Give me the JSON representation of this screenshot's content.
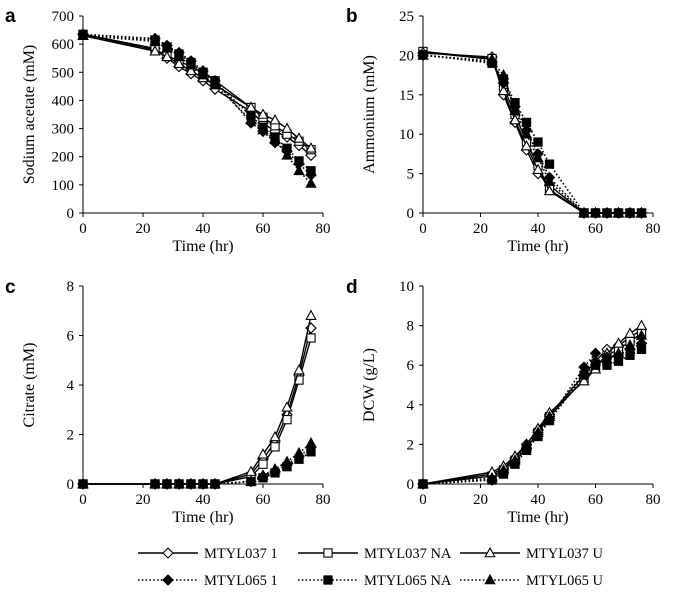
{
  "legend": [
    {
      "name": "MTYL037 1",
      "marker": "diamond",
      "fill": "open",
      "dash": "solid"
    },
    {
      "name": "MTYL037 NA",
      "marker": "square",
      "fill": "open",
      "dash": "solid"
    },
    {
      "name": "MTYL037 U",
      "marker": "triangle",
      "fill": "open",
      "dash": "solid"
    },
    {
      "name": "MTYL065 1",
      "marker": "diamond",
      "fill": "filled",
      "dash": "dotted"
    },
    {
      "name": "MTYL065 NA",
      "marker": "square",
      "fill": "filled",
      "dash": "dotted"
    },
    {
      "name": "MTYL065 U",
      "marker": "triangle",
      "fill": "filled",
      "dash": "dotted"
    }
  ],
  "colors": {
    "line": "#000000",
    "open_fill": "#ffffff",
    "filled_fill": "#000000",
    "axis": "#000000"
  },
  "chart_data": [
    {
      "panel": "a",
      "type": "line",
      "xlabel": "Time (hr)",
      "ylabel": "Sodium acetate (mM)",
      "xlim": [
        0,
        80
      ],
      "ylim": [
        0,
        700
      ],
      "xticks": [
        0,
        20,
        40,
        60,
        80
      ],
      "yticks": [
        0,
        100,
        200,
        300,
        400,
        500,
        600,
        700
      ],
      "grid": false,
      "series": [
        {
          "name": "MTYL037 1",
          "x": [
            0,
            24,
            28,
            32,
            36,
            40,
            44,
            56,
            60,
            64,
            68,
            72,
            76
          ],
          "y": [
            635,
            585,
            550,
            520,
            495,
            470,
            440,
            360,
            320,
            290,
            270,
            240,
            205
          ]
        },
        {
          "name": "MTYL037 NA",
          "x": [
            0,
            24,
            28,
            32,
            36,
            40,
            44,
            56,
            60,
            64,
            68,
            72,
            76
          ],
          "y": [
            635,
            580,
            560,
            540,
            520,
            500,
            470,
            375,
            340,
            310,
            280,
            255,
            225
          ]
        },
        {
          "name": "MTYL037 U",
          "x": [
            0,
            24,
            28,
            32,
            36,
            40,
            44,
            56,
            60,
            64,
            68,
            72,
            76
          ],
          "y": [
            630,
            575,
            555,
            530,
            505,
            480,
            455,
            375,
            350,
            330,
            300,
            265,
            230
          ]
        },
        {
          "name": "MTYL065 1",
          "x": [
            0,
            24,
            28,
            32,
            36,
            40,
            44,
            56,
            60,
            64,
            68,
            72,
            76
          ],
          "y": [
            635,
            620,
            595,
            570,
            540,
            505,
            470,
            320,
            290,
            250,
            220,
            175,
            135
          ]
        },
        {
          "name": "MTYL065 NA",
          "x": [
            0,
            24,
            28,
            32,
            36,
            40,
            44,
            56,
            60,
            64,
            68,
            72,
            76
          ],
          "y": [
            632,
            615,
            590,
            565,
            535,
            500,
            465,
            345,
            305,
            270,
            230,
            185,
            150
          ]
        },
        {
          "name": "MTYL065 U",
          "x": [
            0,
            24,
            28,
            32,
            36,
            40,
            44,
            56,
            60,
            64,
            68,
            72,
            76
          ],
          "y": [
            630,
            610,
            585,
            555,
            525,
            490,
            455,
            330,
            295,
            260,
            205,
            150,
            105
          ]
        }
      ]
    },
    {
      "panel": "b",
      "type": "line",
      "xlabel": "Time (hr)",
      "ylabel": "Ammonium (mM)",
      "xlim": [
        0,
        80
      ],
      "ylim": [
        0,
        25
      ],
      "xticks": [
        0,
        20,
        40,
        60,
        80
      ],
      "yticks": [
        0,
        5,
        10,
        15,
        20,
        25
      ],
      "grid": false,
      "series": [
        {
          "name": "MTYL037 1",
          "x": [
            0,
            24,
            28,
            32,
            36,
            40,
            44,
            56,
            60,
            64,
            68,
            72,
            76
          ],
          "y": [
            20.3,
            19.8,
            15.0,
            11.5,
            8.0,
            5.0,
            3.5,
            0,
            0,
            0,
            0,
            0,
            0
          ]
        },
        {
          "name": "MTYL037 NA",
          "x": [
            0,
            24,
            28,
            32,
            36,
            40,
            44,
            56,
            60,
            64,
            68,
            72,
            76
          ],
          "y": [
            20.5,
            19.6,
            16.0,
            12.5,
            9.0,
            6.0,
            3.0,
            0,
            0,
            0,
            0,
            0,
            0
          ]
        },
        {
          "name": "MTYL037 U",
          "x": [
            0,
            24,
            28,
            32,
            36,
            40,
            44,
            56,
            60,
            64,
            68,
            72,
            76
          ],
          "y": [
            20.4,
            19.5,
            15.5,
            11.8,
            8.5,
            5.5,
            2.8,
            0,
            0,
            0,
            0,
            0,
            0
          ]
        },
        {
          "name": "MTYL065 1",
          "x": [
            0,
            24,
            28,
            32,
            36,
            40,
            44,
            56,
            60,
            64,
            68,
            72,
            76
          ],
          "y": [
            20.0,
            19.2,
            16.5,
            13.5,
            10.5,
            7.5,
            4.5,
            0,
            0,
            0,
            0,
            0,
            0
          ]
        },
        {
          "name": "MTYL065 NA",
          "x": [
            0,
            24,
            28,
            32,
            36,
            40,
            44,
            56,
            60,
            64,
            68,
            72,
            76
          ],
          "y": [
            20.1,
            19.0,
            17.0,
            14.0,
            11.5,
            9.0,
            6.2,
            0,
            0,
            0,
            0,
            0,
            0
          ]
        },
        {
          "name": "MTYL065 U",
          "x": [
            0,
            24,
            28,
            32,
            36,
            40,
            44,
            56,
            60,
            64,
            68,
            72,
            76
          ],
          "y": [
            20.0,
            19.3,
            17.5,
            13.0,
            10.0,
            7.0,
            4.0,
            0,
            0,
            0,
            0,
            0,
            0
          ]
        }
      ]
    },
    {
      "panel": "c",
      "type": "line",
      "xlabel": "Time (hr)",
      "ylabel": "Citrate (mM)",
      "xlim": [
        0,
        80
      ],
      "ylim": [
        0,
        8
      ],
      "xticks": [
        0,
        20,
        40,
        60,
        80
      ],
      "yticks": [
        0,
        2,
        4,
        6,
        8
      ],
      "grid": false,
      "series": [
        {
          "name": "MTYL037 1",
          "x": [
            0,
            24,
            28,
            32,
            36,
            40,
            44,
            56,
            60,
            64,
            68,
            72,
            76
          ],
          "y": [
            0,
            0,
            0,
            0,
            0,
            0,
            0,
            0.4,
            1.0,
            1.7,
            2.8,
            4.4,
            6.3
          ]
        },
        {
          "name": "MTYL037 NA",
          "x": [
            0,
            24,
            28,
            32,
            36,
            40,
            44,
            56,
            60,
            64,
            68,
            72,
            76
          ],
          "y": [
            0,
            0,
            0,
            0,
            0,
            0,
            0,
            0.3,
            0.8,
            1.5,
            2.6,
            4.2,
            5.9
          ]
        },
        {
          "name": "MTYL037 U",
          "x": [
            0,
            24,
            28,
            32,
            36,
            40,
            44,
            56,
            60,
            64,
            68,
            72,
            76
          ],
          "y": [
            0,
            0,
            0,
            0,
            0,
            0,
            0,
            0.5,
            1.2,
            1.9,
            3.1,
            4.6,
            6.8
          ]
        },
        {
          "name": "MTYL065 1",
          "x": [
            0,
            24,
            28,
            32,
            36,
            40,
            44,
            56,
            60,
            64,
            68,
            72,
            76
          ],
          "y": [
            0,
            0,
            0,
            0,
            0,
            0,
            0,
            0.1,
            0.3,
            0.5,
            0.8,
            1.1,
            1.5
          ]
        },
        {
          "name": "MTYL065 NA",
          "x": [
            0,
            24,
            28,
            32,
            36,
            40,
            44,
            56,
            60,
            64,
            68,
            72,
            76
          ],
          "y": [
            0,
            0,
            0,
            0,
            0,
            0,
            0,
            0.1,
            0.25,
            0.45,
            0.7,
            1.0,
            1.3
          ]
        },
        {
          "name": "MTYL065 U",
          "x": [
            0,
            24,
            28,
            32,
            36,
            40,
            44,
            56,
            60,
            64,
            68,
            72,
            76
          ],
          "y": [
            0,
            0,
            0,
            0,
            0,
            0,
            0,
            0.1,
            0.35,
            0.6,
            0.9,
            1.25,
            1.65
          ]
        }
      ]
    },
    {
      "panel": "d",
      "type": "line",
      "xlabel": "Time (hr)",
      "ylabel": "DCW (g/L)",
      "xlim": [
        0,
        80
      ],
      "ylim": [
        0,
        10
      ],
      "xticks": [
        0,
        20,
        40,
        60,
        80
      ],
      "yticks": [
        0,
        2,
        4,
        6,
        8,
        10
      ],
      "grid": false,
      "series": [
        {
          "name": "MTYL037 1",
          "x": [
            0,
            24,
            28,
            32,
            36,
            40,
            44,
            56,
            60,
            64,
            68,
            72,
            76
          ],
          "y": [
            0,
            0.5,
            0.8,
            1.3,
            2.0,
            2.7,
            3.5,
            5.5,
            6.2,
            6.8,
            7.0,
            7.4,
            7.8
          ]
        },
        {
          "name": "MTYL037 NA",
          "x": [
            0,
            24,
            28,
            32,
            36,
            40,
            44,
            56,
            60,
            64,
            68,
            72,
            76
          ],
          "y": [
            0,
            0.4,
            0.7,
            1.2,
            1.8,
            2.6,
            3.4,
            5.3,
            5.9,
            6.5,
            6.8,
            7.2,
            7.6
          ]
        },
        {
          "name": "MTYL037 U",
          "x": [
            0,
            24,
            28,
            32,
            36,
            40,
            44,
            56,
            60,
            64,
            68,
            72,
            76
          ],
          "y": [
            0,
            0.6,
            0.9,
            1.4,
            2.0,
            2.8,
            3.6,
            5.2,
            5.8,
            6.6,
            7.1,
            7.6,
            8.0
          ]
        },
        {
          "name": "MTYL065 1",
          "x": [
            0,
            24,
            28,
            32,
            36,
            40,
            44,
            56,
            60,
            64,
            68,
            72,
            76
          ],
          "y": [
            0,
            0.2,
            0.6,
            1.1,
            1.8,
            2.5,
            3.3,
            5.9,
            6.6,
            6.4,
            6.5,
            6.8,
            7.1
          ]
        },
        {
          "name": "MTYL065 NA",
          "x": [
            0,
            24,
            28,
            32,
            36,
            40,
            44,
            56,
            60,
            64,
            68,
            72,
            76
          ],
          "y": [
            0,
            0.2,
            0.5,
            1.0,
            1.7,
            2.4,
            3.2,
            5.5,
            6.0,
            6.0,
            6.2,
            6.5,
            6.8
          ]
        },
        {
          "name": "MTYL065 U",
          "x": [
            0,
            24,
            28,
            32,
            36,
            40,
            44,
            56,
            60,
            64,
            68,
            72,
            76
          ],
          "y": [
            0,
            0.3,
            0.7,
            1.2,
            1.9,
            2.6,
            3.4,
            5.6,
            6.2,
            6.3,
            6.6,
            7.0,
            7.5
          ]
        }
      ]
    }
  ]
}
